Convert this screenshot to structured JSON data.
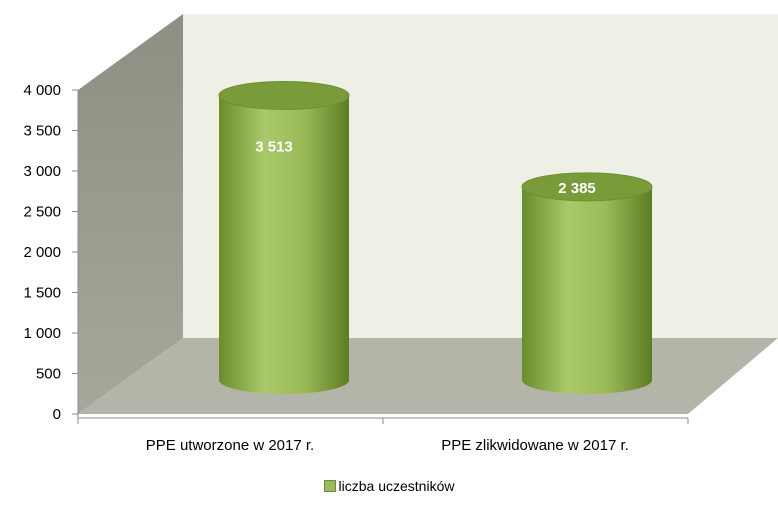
{
  "chart_data": {
    "type": "bar",
    "categories": [
      "PPE utworzone w 2017 r.",
      "PPE zlikwidowane w 2017 r."
    ],
    "series": [
      {
        "name": "liczba uczestników",
        "values": [
          3513,
          2385
        ],
        "labels": [
          "3 513",
          "2 385"
        ]
      }
    ],
    "ylim": [
      0,
      4000
    ],
    "yticks": [
      0,
      500,
      1000,
      1500,
      2000,
      2500,
      3000,
      3500,
      4000
    ],
    "ytick_labels": [
      "0",
      "500",
      "1 000",
      "1 500",
      "2 000",
      "2 500",
      "3 000",
      "3 500",
      "4 000"
    ],
    "grid": false,
    "legend_position": "bottom",
    "style": "3d-cylinder",
    "colors": {
      "bar": "#9bbb59",
      "bar_dark": "#5f7f22",
      "bar_top": "#7a9b3a",
      "back_wall": "#eef0e6",
      "side_wall": "#9c9c8c",
      "floor": "#b2b5a8"
    }
  },
  "legend": {
    "label": "liczba uczestników"
  }
}
